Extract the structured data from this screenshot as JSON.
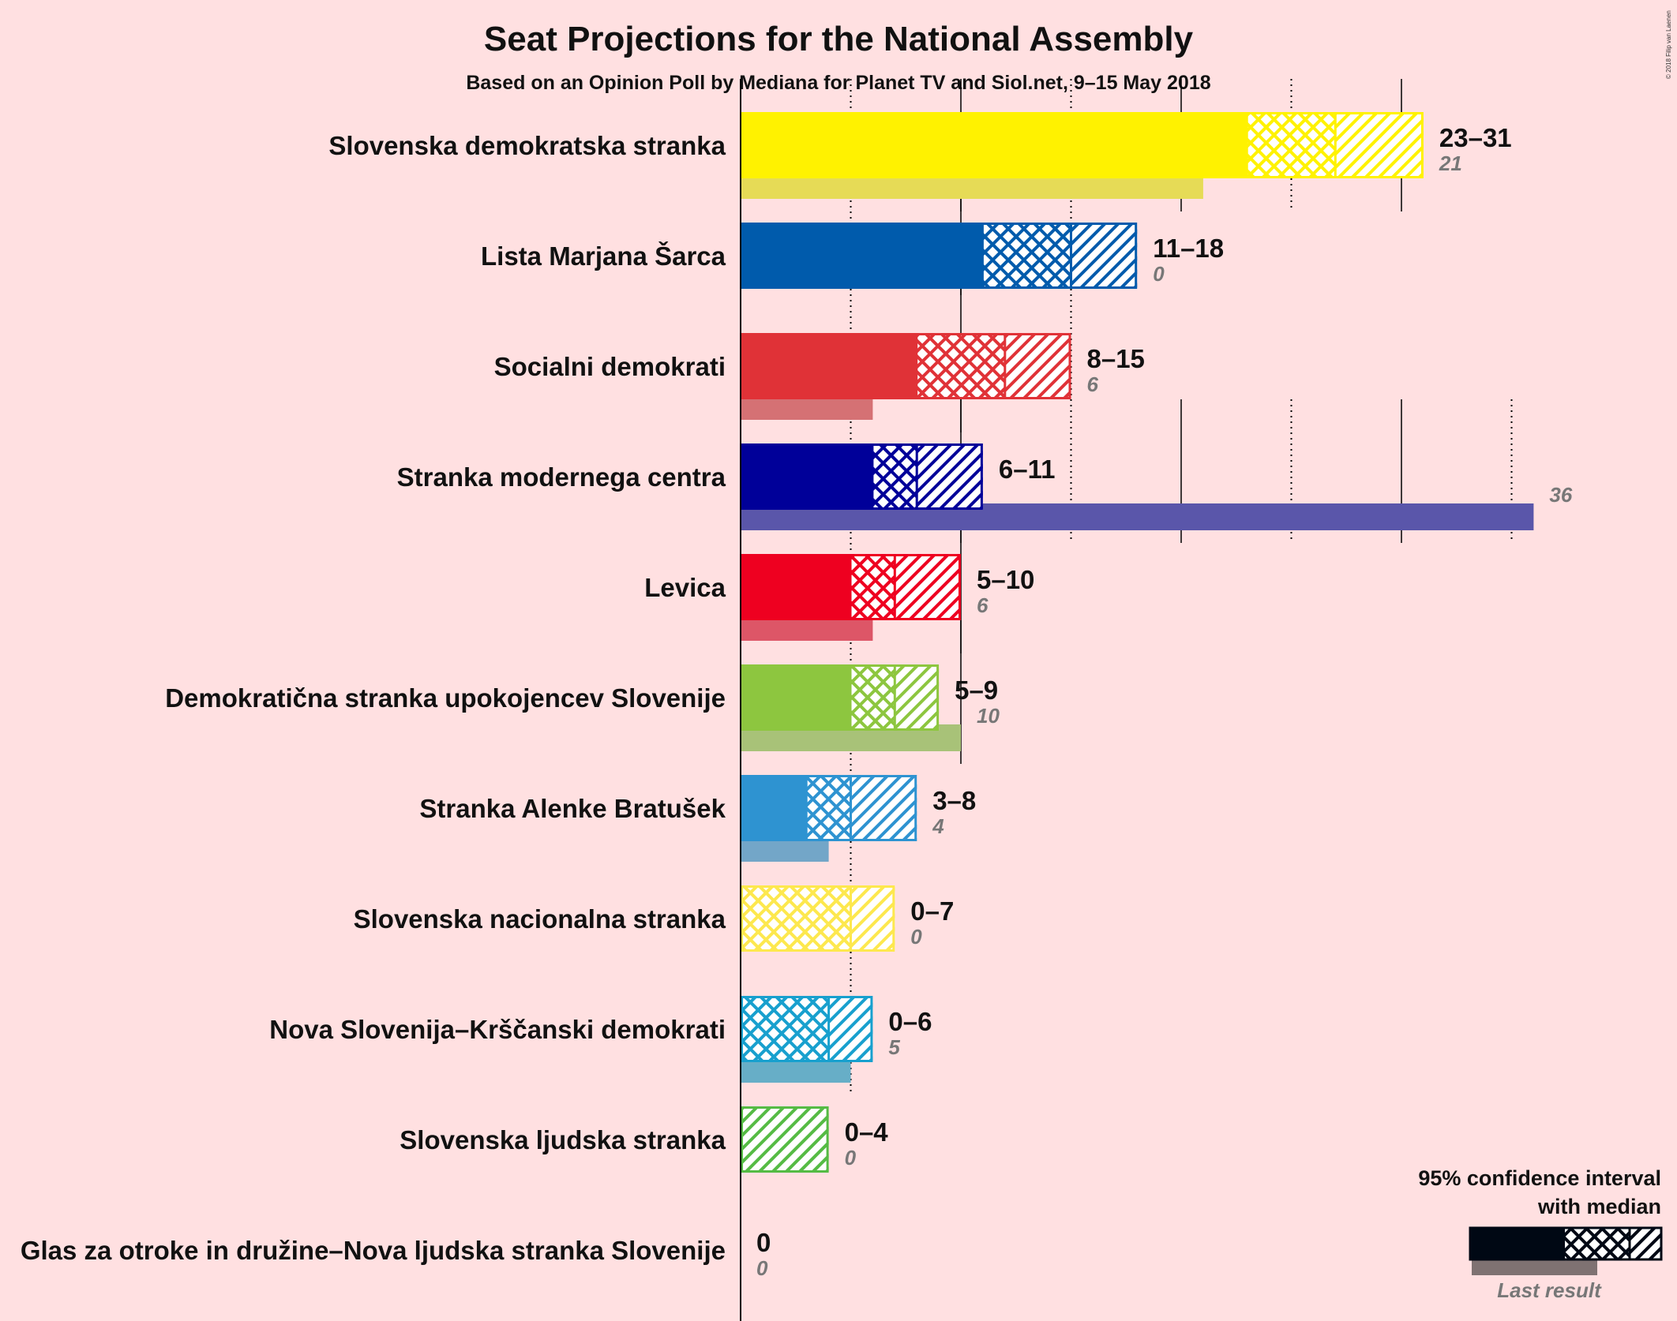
{
  "chart_data": {
    "type": "bar",
    "title": "Seat Projections for the National Assembly",
    "subtitle": "Based on an Opinion Poll by Mediana for Planet TV and Siol.net, 9–15 May 2018",
    "copyright": "© 2018 Filip van Laenen",
    "xlim": [
      0,
      40
    ],
    "gridlines": [
      5,
      10,
      15,
      20,
      25,
      30,
      35
    ],
    "legend": {
      "title_line1": "95% confidence interval",
      "title_line2": "with median",
      "last_result": "Last result",
      "position": "bottom-right"
    },
    "series": [
      {
        "name": "Slovenska demokratska stranka",
        "color": "#FFF200",
        "low": 23,
        "median": 27,
        "high": 31,
        "range_label": "23–31",
        "last": 21,
        "last_label": "21"
      },
      {
        "name": "Lista Marjana Šarca",
        "color": "#005BAC",
        "low": 11,
        "median": 15,
        "high": 18,
        "range_label": "11–18",
        "last": 0,
        "last_label": "0"
      },
      {
        "name": "Socialni demokrati",
        "color": "#E03237",
        "low": 8,
        "median": 12,
        "high": 15,
        "range_label": "8–15",
        "last": 6,
        "last_label": "6"
      },
      {
        "name": "Stranka modernega centra",
        "color": "#000099",
        "low": 6,
        "median": 8,
        "high": 11,
        "range_label": "6–11",
        "last": 36,
        "last_label": "36"
      },
      {
        "name": "Levica",
        "color": "#EE0020",
        "low": 5,
        "median": 7,
        "high": 10,
        "range_label": "5–10",
        "last": 6,
        "last_label": "6"
      },
      {
        "name": "Demokratična stranka upokojencev Slovenije",
        "color": "#8DC63F",
        "low": 5,
        "median": 7,
        "high": 9,
        "range_label": "5–9",
        "last": 10,
        "last_label": "10"
      },
      {
        "name": "Stranka Alenke Bratušek",
        "color": "#2E93D1",
        "low": 3,
        "median": 5,
        "high": 8,
        "range_label": "3–8",
        "last": 4,
        "last_label": "4"
      },
      {
        "name": "Slovenska nacionalna stranka",
        "color": "#FDE84E",
        "low": 0,
        "median": 5,
        "high": 7,
        "range_label": "0–7",
        "last": 0,
        "last_label": "0"
      },
      {
        "name": "Nova Slovenija–Krščanski demokrati",
        "color": "#18A0CE",
        "low": 0,
        "median": 4,
        "high": 6,
        "range_label": "0–6",
        "last": 5,
        "last_label": "5"
      },
      {
        "name": "Slovenska ljudska stranka",
        "color": "#55BB44",
        "low": 0,
        "median": 0,
        "high": 4,
        "range_label": "0–4",
        "last": 0,
        "last_label": "0"
      },
      {
        "name": "Glas za otroke in družine–Nova ljudska stranka Slovenije",
        "color": "#888888",
        "low": 0,
        "median": 0,
        "high": 0,
        "range_label": "0",
        "last": 0,
        "last_label": "0"
      }
    ]
  }
}
